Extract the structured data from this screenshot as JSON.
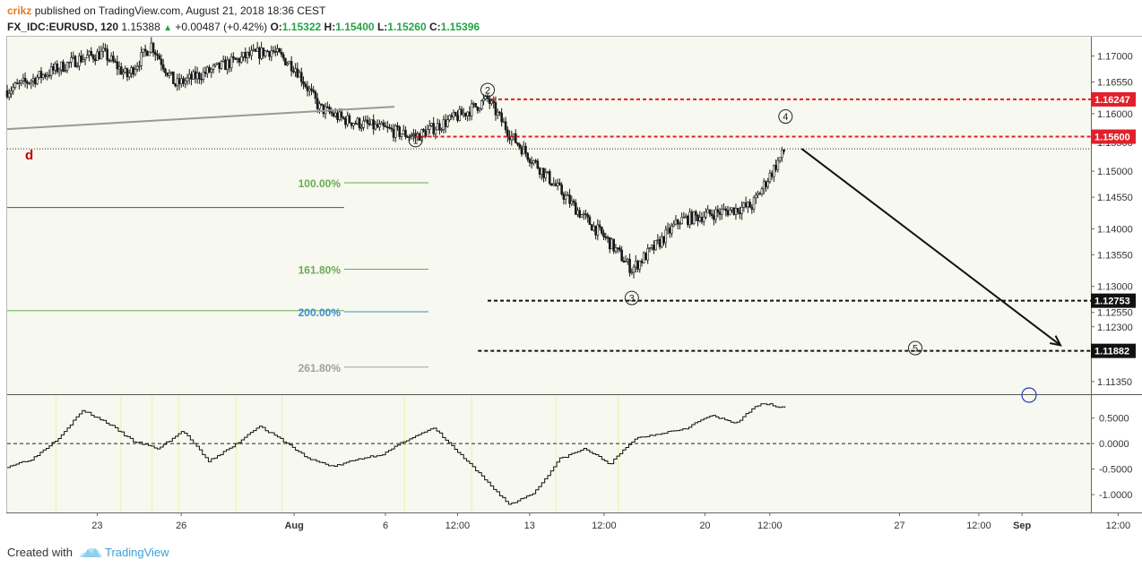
{
  "header": {
    "author": "crikz",
    "published": "published on TradingView.com, August 21, 2018 18:36 CEST",
    "symbol": "FX_IDC:EURUSD, 120",
    "last": "1.15388",
    "change": "+0.00487 (+0.42%)",
    "o_label": "O:",
    "o_value": "1.15322",
    "h_label": "H:",
    "h_value": "1.15400",
    "l_label": "L:",
    "l_value": "1.15260",
    "c_label": "C:",
    "c_value": "1.15396",
    "up_arrow": "up-triangle-icon"
  },
  "footer": {
    "created_with": "Created with",
    "brand": "TradingView",
    "logo_icon": "tradingview-cloud-icon"
  },
  "colors": {
    "background": "#f7f8ef",
    "candle": "#1a1a1a",
    "resistance": "#e02020",
    "support": "#111111",
    "fib_green": "#6aaa5a",
    "fib_blue": "#3a8fd0",
    "fib_gray": "#a0a0a0",
    "price_label_red": "#e0202a",
    "price_label_black": "#111111",
    "accent": "#26a246"
  },
  "chart_data": [
    {
      "type": "candlestick",
      "title": "FX_IDC:EURUSD, 120",
      "y_axis_side": "right",
      "ylim": [
        1.1118,
        1.1738
      ],
      "y_ticks": [
        "1.17000",
        "1.16550",
        "1.16000",
        "1.15500",
        "1.15000",
        "1.14550",
        "1.14000",
        "1.13550",
        "1.13000",
        "1.12550",
        "1.12300",
        "1.11350"
      ],
      "x_ticks": [
        "23",
        "26",
        "Aug",
        "6",
        "12:00",
        "13",
        "12:00",
        "20",
        "12:00",
        "27",
        "12:00",
        "Sep",
        "12:00"
      ],
      "close_path": [
        {
          "x": "Jul 20",
          "close": 1.164
        },
        {
          "x": "Jul 23",
          "close": 1.1695
        },
        {
          "x": "Jul 24",
          "close": 1.1705
        },
        {
          "x": "Jul 25",
          "close": 1.1665
        },
        {
          "x": "Jul 26",
          "close": 1.172
        },
        {
          "x": "Jul 27",
          "close": 1.165
        },
        {
          "x": "Jul 30",
          "close": 1.17
        },
        {
          "x": "Jul 31",
          "close": 1.171
        },
        {
          "x": "Aug 1",
          "close": 1.168
        },
        {
          "x": "Aug 2",
          "close": 1.161
        },
        {
          "x": "Aug 3",
          "close": 1.159
        },
        {
          "x": "Aug 6",
          "close": 1.156
        },
        {
          "x": "Aug 7",
          "close": 1.158
        },
        {
          "x": "Aug 8",
          "close": 1.16
        },
        {
          "x": "Aug 9",
          "close": 1.1625
        },
        {
          "x": "Aug 10",
          "close": 1.156
        },
        {
          "x": "Aug 13",
          "close": 1.142
        },
        {
          "x": "Aug 14",
          "close": 1.138
        },
        {
          "x": "Aug 15",
          "close": 1.133
        },
        {
          "x": "Aug 16",
          "close": 1.137
        },
        {
          "x": "Aug 17",
          "close": 1.1415
        },
        {
          "x": "Aug 20",
          "close": 1.144
        },
        {
          "x": "Aug 21",
          "close": 1.1539
        }
      ],
      "price_labels": [
        {
          "value": "1.16247",
          "style": "red"
        },
        {
          "value": "1.15600",
          "style": "red"
        },
        {
          "value": "1.12753",
          "style": "black"
        },
        {
          "value": "1.11882",
          "style": "black"
        }
      ],
      "horizontal_levels": [
        {
          "value": 1.16247,
          "style": "red-dashed"
        },
        {
          "value": 1.156,
          "style": "red-dashed"
        },
        {
          "value": 1.12753,
          "style": "black-dashed"
        },
        {
          "value": 1.11882,
          "style": "black-dashed"
        },
        {
          "value": 1.15388,
          "style": "dotted-current"
        }
      ],
      "fib_levels": [
        {
          "label": "100.00%",
          "price": 1.148,
          "color": "green"
        },
        {
          "label": "161.80%",
          "price": 1.133,
          "color": "green"
        },
        {
          "label": "200.00%",
          "price": 1.1256,
          "color": "blue"
        },
        {
          "label": "261.80%",
          "price": 1.116,
          "color": "gray"
        }
      ],
      "wave_labels": [
        {
          "label": "1",
          "x": "Aug 6",
          "price": 1.1554
        },
        {
          "label": "2",
          "x": "Aug 9",
          "price": 1.1641
        },
        {
          "label": "3",
          "x": "Aug 15",
          "price": 1.128
        },
        {
          "label": "4",
          "x": "Aug 21",
          "price": 1.1595
        },
        {
          "label": "5",
          "x": "Aug 26",
          "price": 1.1193
        }
      ],
      "annotations": [
        {
          "text": "d",
          "color": "#c00000"
        }
      ],
      "projection_arrow": {
        "from": {
          "x": "Aug 21",
          "price": 1.1539
        },
        "to": {
          "x": "Aug 30",
          "price": 1.1198
        }
      }
    },
    {
      "type": "line",
      "title": "",
      "y_ticks": [
        "0.5000",
        "0.0000",
        "-0.5000",
        "-1.0000"
      ],
      "ylim": [
        -1.35,
        0.95
      ],
      "zero_line": "dashed",
      "series": [
        {
          "values": [
            -0.45,
            -0.3,
            0.1,
            0.65,
            0.4,
            0.05,
            -0.1,
            0.25,
            -0.35,
            -0.05,
            0.35,
            0.05,
            -0.3,
            -0.45,
            -0.3,
            -0.2,
            0.1,
            0.3,
            -0.2,
            -0.7,
            -1.2,
            -0.95,
            -0.3,
            -0.1,
            -0.4,
            0.1,
            0.2,
            0.3,
            0.55,
            0.4,
            0.8,
            0.7
          ]
        }
      ]
    }
  ]
}
